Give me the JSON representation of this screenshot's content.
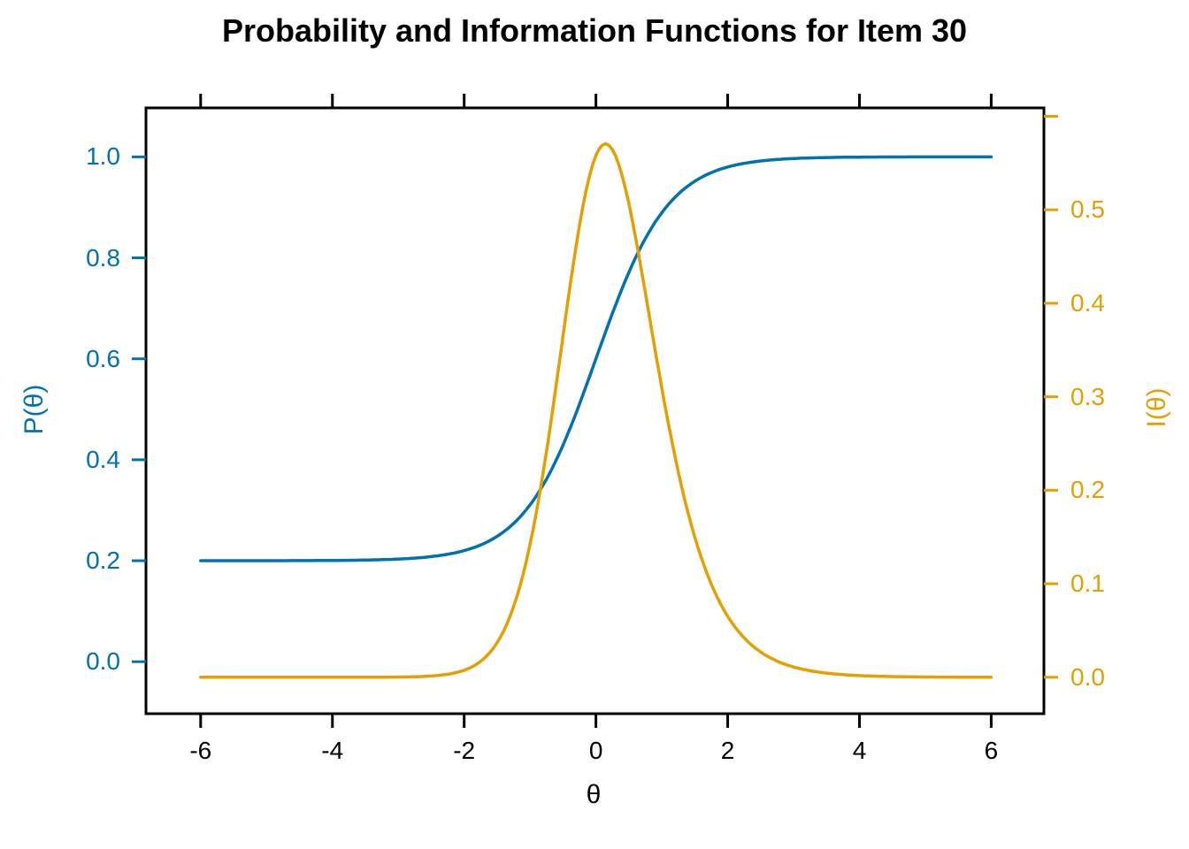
{
  "figure": {
    "background": "#ffffff",
    "box_color": "#000000"
  },
  "chart_data": {
    "type": "line",
    "title": "Probability and Information Functions for Item 30",
    "item_number": 30,
    "xlabel": "θ",
    "ylabel_left": "P(θ)",
    "ylabel_right": "I(θ)",
    "xlim": [
      -6.83,
      6.8
    ],
    "ylim_left": [
      -0.103,
      1.097
    ],
    "ylim_right": [
      -0.039,
      0.609
    ],
    "grid": false,
    "legend": "none",
    "x_ticks": [
      -6,
      -4,
      -2,
      0,
      2,
      4,
      6
    ],
    "x_tick_labels": [
      "-6",
      "-4",
      "-2",
      "0",
      "2",
      "4",
      "6"
    ],
    "x_ticks_mirrored_on_top": true,
    "left_ticks": [
      0,
      0.2,
      0.4,
      0.6,
      0.8,
      1
    ],
    "left_tick_labels": [
      "0.0",
      "0.2",
      "0.4",
      "0.6",
      "0.8",
      "1.0"
    ],
    "right_ticks": [
      0,
      0.1,
      0.2,
      0.3,
      0.4,
      0.5
    ],
    "right_tick_labels": [
      "0.0",
      "0.1",
      "0.2",
      "0.3",
      "0.4",
      "0.5"
    ],
    "right_unlabeled_ticks": [
      0.6
    ],
    "colors": {
      "probability_curve": "#0072B2",
      "information_curve": "#E69F00",
      "x_axis": "#000000",
      "left_axis": "#0072B2",
      "right_axis": "#E69F00",
      "title": "#000000"
    },
    "series": [
      {
        "name": "P(θ)",
        "role": "item-characteristic-curve",
        "axis": "left",
        "color": "#0072B2",
        "model": {
          "type": "3PL",
          "a": 1.83,
          "b": 0.0,
          "c": 0.2
        },
        "x": [
          -6,
          -5.5,
          -5,
          -4.5,
          -4,
          -3.5,
          -3,
          -2.5,
          -2,
          -1.5,
          -1,
          -0.5,
          0,
          0.5,
          1,
          1.5,
          2,
          2.5,
          3,
          3.5,
          4,
          4.5,
          5,
          5.5,
          6
        ],
        "y": [
          0.2,
          0.2,
          0.2001,
          0.2002,
          0.2005,
          0.2013,
          0.2033,
          0.2082,
          0.2201,
          0.2484,
          0.3105,
          0.4287,
          0.6,
          0.7713,
          0.8895,
          0.9517,
          0.9799,
          0.9918,
          0.9967,
          0.9987,
          0.9995,
          0.9998,
          0.9999,
          1.0,
          1.0
        ]
      },
      {
        "name": "I(θ)",
        "role": "item-information-curve",
        "axis": "right",
        "color": "#E69F00",
        "model": {
          "type": "3PL-information",
          "a": 1.83,
          "b": 0.0,
          "c": 0.2
        },
        "peak": {
          "theta": 0.17,
          "value": 0.57
        },
        "x": [
          -6,
          -5.5,
          -5,
          -4.5,
          -4,
          -3.5,
          -3,
          -2.5,
          -2,
          -1.5,
          -1,
          -0.5,
          0,
          0.5,
          1,
          1.5,
          2,
          2.5,
          3,
          3.5,
          4,
          4.5,
          5,
          5.5,
          6
        ],
        "y": [
          0.0,
          0.0,
          0.0,
          0.0,
          0.0,
          0.0,
          0.0002,
          0.0013,
          0.0075,
          0.037,
          0.1418,
          0.3648,
          0.5582,
          0.5063,
          0.3091,
          0.1501,
          0.0653,
          0.0271,
          0.011,
          0.0043,
          0.0018,
          0.0007,
          0.0003,
          0.0001,
          0.0
        ]
      }
    ]
  }
}
